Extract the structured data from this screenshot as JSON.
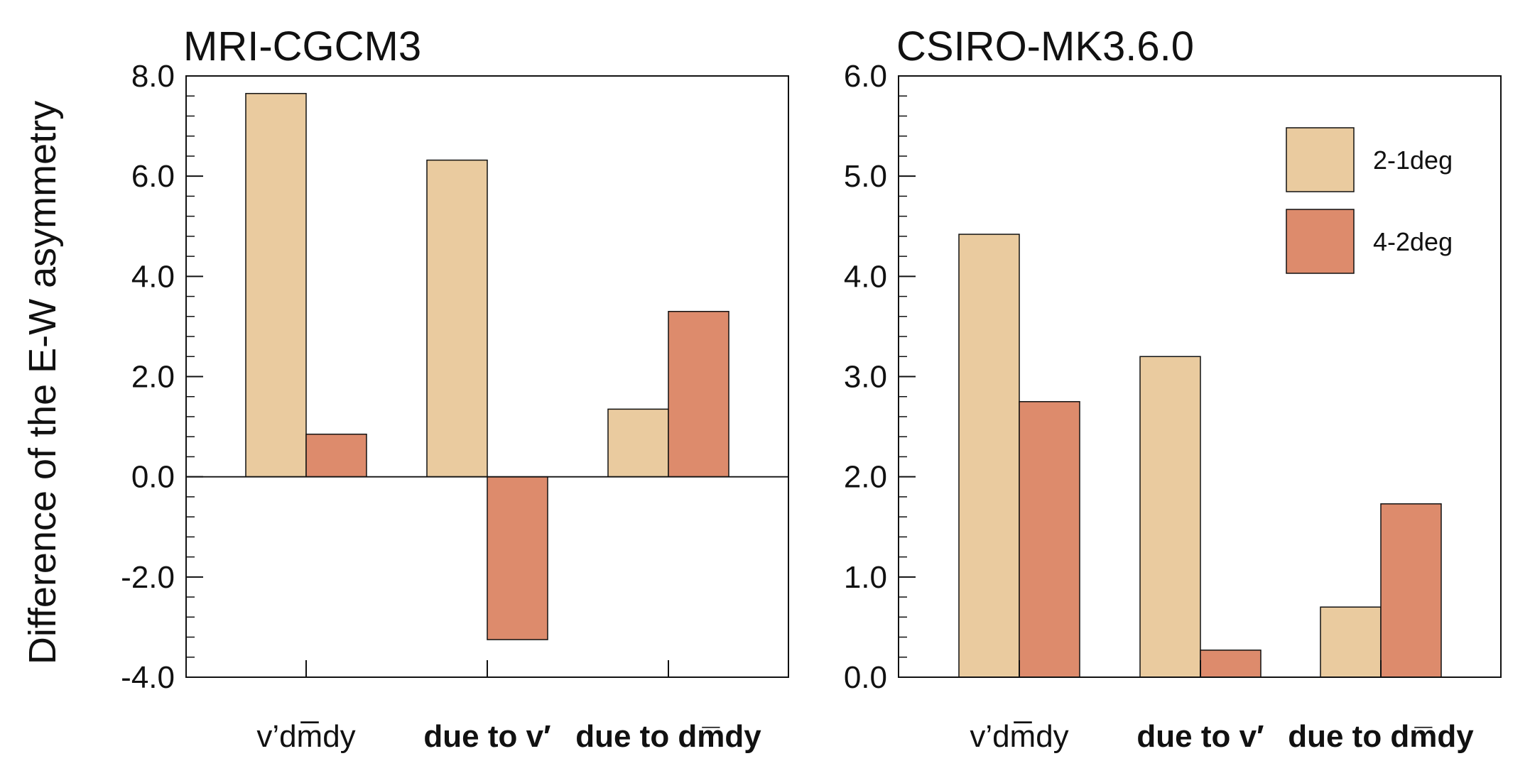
{
  "figure": {
    "ylabel": "Difference of the E-W asymmetry"
  },
  "colors": {
    "series_2_1deg": "#EACB9F",
    "series_4_2deg": "#DD8B6C",
    "axis": "#111111"
  },
  "chart_data": [
    {
      "type": "bar",
      "title": "MRI-CGCM3",
      "ylabel": "Difference of the E-W asymmetry",
      "xlabel": "",
      "categories": [
        "v’dm̅dy",
        "due to v′",
        "due to dm̅dy"
      ],
      "category_bold": [
        false,
        true,
        true
      ],
      "series": [
        {
          "name": "2-1deg",
          "values": [
            7.65,
            6.32,
            1.35
          ]
        },
        {
          "name": "4-2deg",
          "values": [
            0.85,
            -3.25,
            3.3
          ]
        }
      ],
      "ylim": [
        -4.0,
        8.0
      ],
      "yticks": [
        "-4.0",
        "-2.0",
        "0.0",
        "2.0",
        "4.0",
        "6.0",
        "8.0"
      ],
      "zero_line": true,
      "legend": false,
      "grid": false
    },
    {
      "type": "bar",
      "title": "CSIRO-MK3.6.0",
      "xlabel": "",
      "categories": [
        "v’dm̅dy",
        "due to v′",
        "due to dm̅dy"
      ],
      "category_bold": [
        false,
        true,
        true
      ],
      "series": [
        {
          "name": "2-1deg",
          "values": [
            4.42,
            3.2,
            0.7
          ]
        },
        {
          "name": "4-2deg",
          "values": [
            2.75,
            0.27,
            1.73
          ]
        }
      ],
      "ylim": [
        0.0,
        6.0
      ],
      "yticks": [
        "0.0",
        "1.0",
        "2.0",
        "3.0",
        "4.0",
        "5.0",
        "6.0"
      ],
      "zero_line": false,
      "legend": true,
      "legend_position": "top-right",
      "grid": false
    }
  ]
}
